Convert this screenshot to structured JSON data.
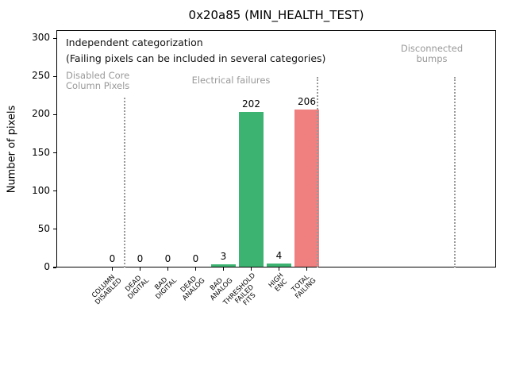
{
  "chart_data": {
    "type": "bar",
    "title": "0x20a85 (MIN_HEALTH_TEST)",
    "ylabel": "Number of pixels",
    "xlabel": "",
    "ylim": [
      0,
      309
    ],
    "yticks": [
      0,
      50,
      100,
      150,
      200,
      250,
      300
    ],
    "grid": false,
    "legend": null,
    "categories": [
      "COLUMN\nDISABLED",
      "DEAD\nDIGITAL",
      "BAD\nDIGITAL",
      "DEAD\nANALOG",
      "BAD\nANALOG",
      "THRESHOLD\nFAILED\nFITS",
      "HIGH\nENC",
      "TOTAL\nFAILING"
    ],
    "values": [
      0,
      0,
      0,
      0,
      3,
      202,
      4,
      206
    ],
    "value_labels": [
      "0",
      "0",
      "0",
      "0",
      "3",
      "202",
      "4",
      "206"
    ],
    "bar_colors": [
      "#3cb371",
      "#3cb371",
      "#3cb371",
      "#3cb371",
      "#3cb371",
      "#3cb371",
      "#3cb371",
      "#f08080"
    ],
    "section_separators_x": [
      157,
      400,
      573
    ],
    "annotations": {
      "note_line1": "Independent categorization",
      "note_line2": "(Failing pixels can be included in several categories)",
      "section_disabled": "Disabled Core\nColumn Pixels",
      "section_electrical": "Electrical failures",
      "section_bumps": "Disconnected\nbumps"
    },
    "colors": {
      "bar_green": "#3cb371",
      "bar_red": "#f08080",
      "annotation_gray": "#999999",
      "separator_gray": "#999999"
    }
  }
}
